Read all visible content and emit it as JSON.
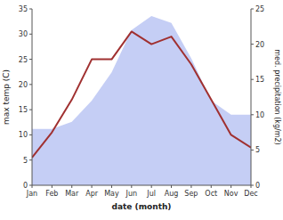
{
  "chart_data": {
    "type": "line",
    "xlabel": "date (month)",
    "ylabel": "max temp (C)",
    "y2label": "med. precipitation (kg/m2)",
    "categories": [
      "Jan",
      "Feb",
      "Mar",
      "Apr",
      "May",
      "Jun",
      "Jul",
      "Aug",
      "Sep",
      "Oct",
      "Nov",
      "Dec"
    ],
    "series": [
      {
        "type": "line",
        "color": "#a03030",
        "values": [
          5.5,
          10.5,
          17.0,
          25.0,
          25.0,
          30.5,
          28.0,
          29.5,
          24.0,
          17.0,
          10.0,
          7.5
        ]
      },
      {
        "type": "area",
        "color": "#c5cef5",
        "axis": "y2",
        "values": [
          8,
          8,
          9,
          12,
          16,
          22,
          24,
          23,
          18,
          12,
          10,
          10
        ]
      }
    ],
    "ylim": [
      0,
      35
    ],
    "yticks": [
      0,
      5,
      10,
      15,
      20,
      25,
      30,
      35
    ],
    "y2lim": [
      0,
      25
    ],
    "y2ticks": [
      0,
      5,
      10,
      15,
      20,
      25
    ],
    "grid": false
  }
}
